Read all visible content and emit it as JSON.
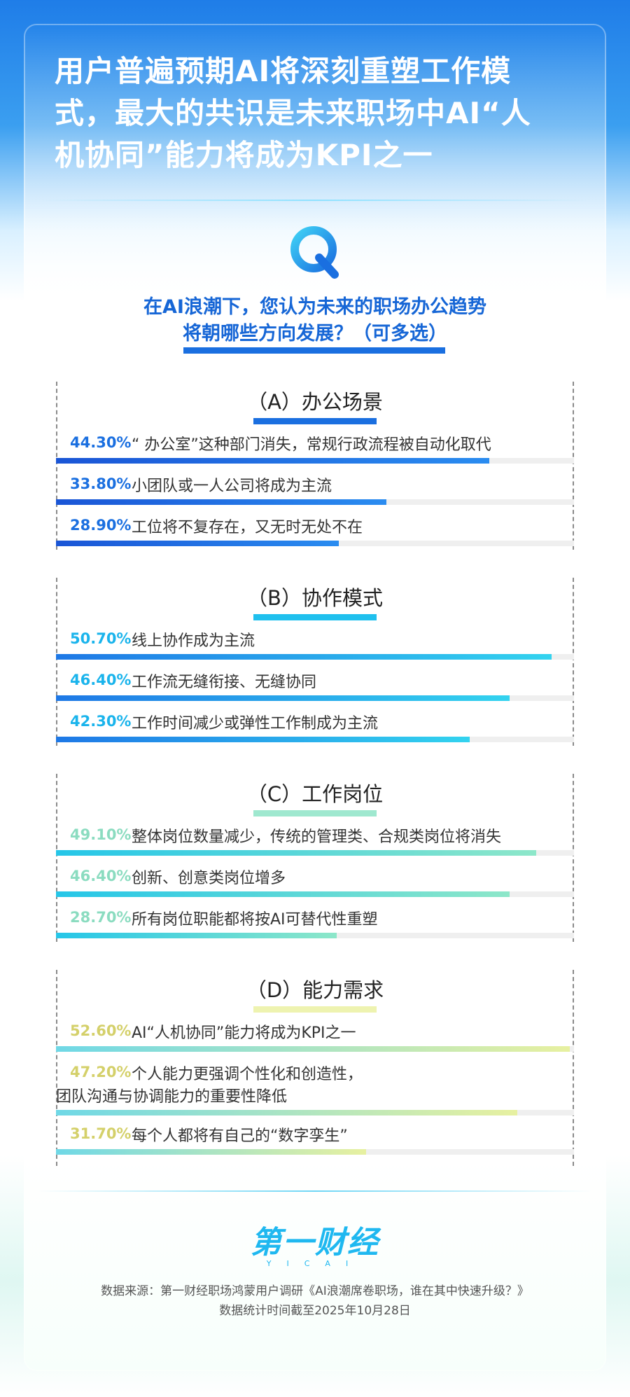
{
  "title_lines": [
    "用户普遍预期AI将深刻重塑工作模",
    "式，最大的共识是未来职场中AI“人",
    "机协同”能力将成为KPI之一"
  ],
  "question_lines": [
    "在AI浪潮下，您认为未来的职场办公趋势",
    "将朝哪些方向发展？（可多选）"
  ],
  "colors": {
    "blue_deep": "#1a6fe0",
    "blue_light": "#22c4ef",
    "mint": "#8de7c9",
    "yellow": "#e7f0a0"
  },
  "chart_data": {
    "type": "bar",
    "groups": [
      {
        "title": "（A）办公场景",
        "color_start": "#1a55d6",
        "color_end": "#2a8cf0",
        "label_color": "#1a6fe0",
        "underline_color": "#1a6fe0",
        "items": [
          {
            "pct_text": "44.30%",
            "value": 44.3,
            "label": "“ 办公室”这种部门消失，常规行政流程被自动化取代"
          },
          {
            "pct_text": "33.80%",
            "value": 33.8,
            "label": "小团队或一人公司将成为主流"
          },
          {
            "pct_text": "28.90%",
            "value": 28.9,
            "label": "工位将不复存在，又无时无处不在"
          }
        ]
      },
      {
        "title": "（B）协作模式",
        "color_start": "#1e78e6",
        "color_end": "#33d3ef",
        "label_color": "#1ab4ec",
        "underline_color": "#1fc0ee",
        "items": [
          {
            "pct_text": "50.70%",
            "value": 50.7,
            "label": "线上协作成为主流"
          },
          {
            "pct_text": "46.40%",
            "value": 46.4,
            "label": "工作流无缝衔接、无缝协同"
          },
          {
            "pct_text": "42.30%",
            "value": 42.3,
            "label": "工作时间减少或弹性工作制成为主流"
          }
        ]
      },
      {
        "title": "（C）工作岗位",
        "color_start": "#25c6e8",
        "color_end": "#8de7c9",
        "label_color": "#8bdcc0",
        "underline_color": "#9fe8cf",
        "items": [
          {
            "pct_text": "49.10%",
            "value": 49.1,
            "label": "整体岗位数量减少，传统的管理类、合规类岗位将消失"
          },
          {
            "pct_text": "46.40%",
            "value": 46.4,
            "label": "创新、创意类岗位增多"
          },
          {
            "pct_text": "28.70%",
            "value": 28.7,
            "label": "所有岗位职能都将按AI可替代性重塑"
          }
        ]
      },
      {
        "title": "（D）能力需求",
        "color_start": "#6fd8e6",
        "color_end": "#e7f0a0",
        "label_color": "#d4d06a",
        "underline_color": "#eef3b0",
        "items": [
          {
            "pct_text": "52.60%",
            "value": 52.6,
            "label": "AI“人机协同”能力将成为KPI之一"
          },
          {
            "pct_text": "47.20%",
            "value": 47.2,
            "label": "个人能力更强调个性化和创造性，",
            "label2": "团队沟通与协调能力的重要性降低"
          },
          {
            "pct_text": "31.70%",
            "value": 31.7,
            "label": "每个人都将有自己的“数字孪生”"
          }
        ]
      }
    ],
    "xlim": [
      0,
      53
    ]
  },
  "brand": {
    "name": "第一财经",
    "sub": "YICAI"
  },
  "source_lines": [
    "数据来源：第一财经职场鸿蒙用户调研《AI浪潮席卷职场，谁在其中快速升级？》",
    "数据统计时间截至2025年10月28日"
  ]
}
